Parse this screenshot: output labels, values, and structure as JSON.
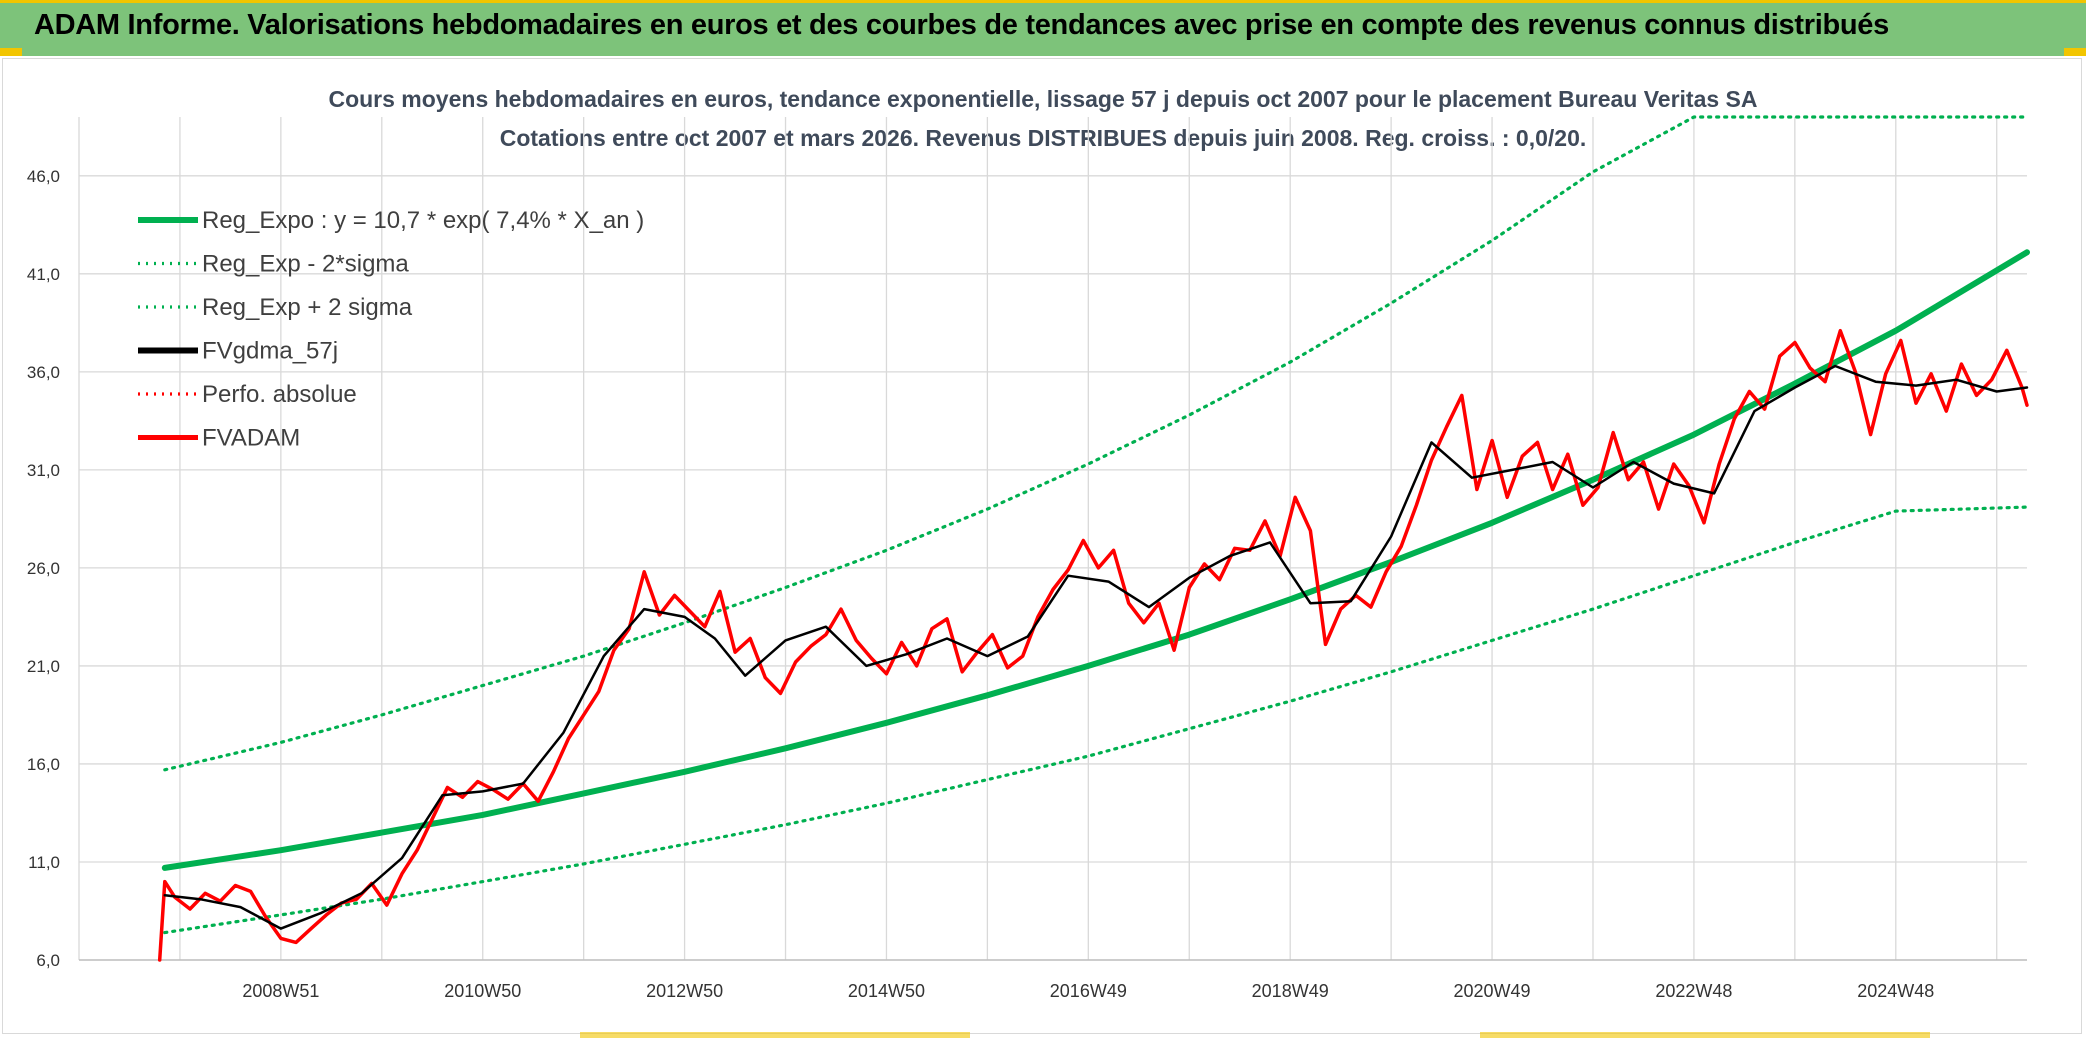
{
  "banner": {
    "title": "ADAM Informe. Valorisations hebdomadaires en euros et des courbes de tendances avec prise en compte des revenus connus distribués"
  },
  "colors": {
    "banner_bg": "#7dc37a",
    "accent": "#f2c500",
    "trend": "#00b050",
    "smooth": "#000000",
    "price": "#ff0000"
  },
  "chart_data": {
    "type": "line",
    "title": "Cours moyens hebdomadaires en euros, tendance exponentielle, lissage 57 j depuis oct 2007 pour le placement Bureau Veritas SA",
    "subtitle": "Cotations entre oct 2007 et mars 2026. Revenus DISTRIBUES depuis juin 2008. Reg. croiss. : 0,0/20.",
    "ylim": [
      6.0,
      49.0
    ],
    "y_ticks": [
      "6,0",
      "11,0",
      "16,0",
      "21,0",
      "26,0",
      "31,0",
      "36,0",
      "41,0",
      "46,0"
    ],
    "y_tick_values": [
      6,
      11,
      16,
      21,
      26,
      31,
      36,
      41,
      46
    ],
    "xlim": [
      2007.0,
      2026.3
    ],
    "x_ticks": [
      "2008W51",
      "2010W50",
      "2012W50",
      "2014W50",
      "2016W49",
      "2018W49",
      "2020W49",
      "2022W48",
      "2024W48"
    ],
    "x_tick_values": [
      2009.0,
      2011.0,
      2013.0,
      2015.0,
      2017.0,
      2019.0,
      2021.0,
      2023.0,
      2025.0
    ],
    "grid": true,
    "legend_position": "top-left",
    "series": [
      {
        "name": "Reg_Expo : y = 10,7 * exp( 7,4% *  X_an )",
        "style": "solid-thick",
        "color": "#00b050",
        "x": [
          2007.85,
          2009.0,
          2010.0,
          2011.0,
          2012.0,
          2013.0,
          2014.0,
          2015.0,
          2016.0,
          2017.0,
          2018.0,
          2019.0,
          2020.0,
          2021.0,
          2022.0,
          2023.0,
          2024.0,
          2025.0,
          2026.3
        ],
        "values": [
          10.7,
          11.6,
          12.5,
          13.4,
          14.5,
          15.6,
          16.8,
          18.1,
          19.5,
          21.0,
          22.6,
          24.4,
          26.3,
          28.3,
          30.5,
          32.8,
          35.4,
          38.1,
          42.1
        ]
      },
      {
        "name": "Reg_Exp - 2*sigma",
        "style": "dotted",
        "color": "#00b050",
        "x": [
          2007.85,
          2009.0,
          2010.0,
          2011.0,
          2012.0,
          2013.0,
          2014.0,
          2015.0,
          2016.0,
          2017.0,
          2018.0,
          2019.0,
          2020.0,
          2021.0,
          2022.0,
          2023.0,
          2024.0,
          2025.0,
          2026.3
        ],
        "values": [
          7.4,
          8.3,
          9.1,
          10.0,
          10.9,
          11.9,
          12.9,
          14.0,
          15.2,
          16.4,
          17.8,
          19.2,
          20.7,
          22.3,
          23.9,
          25.6,
          27.3,
          28.9,
          29.1
        ]
      },
      {
        "name": "Reg_Exp + 2 sigma",
        "style": "dotted",
        "color": "#00b050",
        "x": [
          2007.85,
          2009.0,
          2010.0,
          2011.0,
          2012.0,
          2013.0,
          2014.0,
          2015.0,
          2016.0,
          2017.0,
          2018.0,
          2019.0,
          2020.0,
          2021.0,
          2022.0,
          2023.0,
          2024.0,
          2025.0,
          2026.3
        ],
        "values": [
          15.7,
          17.1,
          18.5,
          20.0,
          21.5,
          23.2,
          25.0,
          26.9,
          29.0,
          31.3,
          33.8,
          36.5,
          39.5,
          42.7,
          46.2,
          49.0,
          49.0,
          49.0,
          49.0
        ]
      },
      {
        "name": "FVgdma_57j",
        "style": "solid",
        "color": "#000000",
        "x": [
          2007.85,
          2008.2,
          2008.6,
          2009.0,
          2009.4,
          2009.8,
          2010.2,
          2010.6,
          2011.0,
          2011.4,
          2011.8,
          2012.2,
          2012.6,
          2013.0,
          2013.3,
          2013.6,
          2014.0,
          2014.4,
          2014.8,
          2015.2,
          2015.6,
          2016.0,
          2016.4,
          2016.8,
          2017.2,
          2017.6,
          2018.0,
          2018.4,
          2018.8,
          2019.2,
          2019.6,
          2020.0,
          2020.4,
          2020.8,
          2021.2,
          2021.6,
          2022.0,
          2022.4,
          2022.8,
          2023.2,
          2023.6,
          2024.0,
          2024.4,
          2024.8,
          2025.2,
          2025.6,
          2026.0,
          2026.3
        ],
        "values": [
          9.3,
          9.1,
          8.7,
          7.6,
          8.4,
          9.4,
          11.2,
          14.4,
          14.6,
          15.0,
          17.6,
          21.5,
          23.9,
          23.5,
          22.4,
          20.5,
          22.3,
          23.0,
          21.0,
          21.6,
          22.4,
          21.5,
          22.5,
          25.6,
          25.3,
          24.0,
          25.5,
          26.6,
          27.3,
          24.2,
          24.3,
          27.6,
          32.4,
          30.6,
          31.0,
          31.4,
          30.1,
          31.4,
          30.3,
          29.8,
          34.0,
          35.2,
          36.3,
          35.5,
          35.3,
          35.6,
          35.0,
          35.2
        ]
      },
      {
        "name": "Perfo. absolue",
        "style": "dotted",
        "color": "#ff0000",
        "x": [],
        "values": []
      },
      {
        "name": "FVADAM",
        "style": "solid-thick",
        "color": "#ff0000",
        "x": [
          2007.8,
          2007.85,
          2007.95,
          2008.1,
          2008.25,
          2008.4,
          2008.55,
          2008.7,
          2008.85,
          2009.0,
          2009.15,
          2009.3,
          2009.45,
          2009.6,
          2009.75,
          2009.9,
          2010.05,
          2010.2,
          2010.35,
          2010.5,
          2010.65,
          2010.8,
          2010.95,
          2011.1,
          2011.25,
          2011.4,
          2011.55,
          2011.7,
          2011.85,
          2012.0,
          2012.15,
          2012.3,
          2012.45,
          2012.6,
          2012.75,
          2012.9,
          2013.05,
          2013.2,
          2013.35,
          2013.5,
          2013.65,
          2013.8,
          2013.95,
          2014.1,
          2014.25,
          2014.4,
          2014.55,
          2014.7,
          2014.85,
          2015.0,
          2015.15,
          2015.3,
          2015.45,
          2015.6,
          2015.75,
          2015.9,
          2016.05,
          2016.2,
          2016.35,
          2016.5,
          2016.65,
          2016.8,
          2016.95,
          2017.1,
          2017.25,
          2017.4,
          2017.55,
          2017.7,
          2017.85,
          2018.0,
          2018.15,
          2018.3,
          2018.45,
          2018.6,
          2018.75,
          2018.9,
          2019.05,
          2019.2,
          2019.35,
          2019.5,
          2019.65,
          2019.8,
          2019.95,
          2020.1,
          2020.25,
          2020.4,
          2020.55,
          2020.7,
          2020.85,
          2021.0,
          2021.15,
          2021.3,
          2021.45,
          2021.6,
          2021.75,
          2021.9,
          2022.05,
          2022.2,
          2022.35,
          2022.5,
          2022.65,
          2022.8,
          2022.95,
          2023.1,
          2023.25,
          2023.4,
          2023.55,
          2023.7,
          2023.85,
          2024.0,
          2024.15,
          2024.3,
          2024.45,
          2024.6,
          2024.75,
          2024.9,
          2025.05,
          2025.2,
          2025.35,
          2025.5,
          2025.65,
          2025.8,
          2025.95,
          2026.1,
          2026.25,
          2026.3
        ],
        "values": [
          6.0,
          10.0,
          9.2,
          8.6,
          9.4,
          9.0,
          9.8,
          9.5,
          8.2,
          7.1,
          6.9,
          7.6,
          8.3,
          8.9,
          9.1,
          9.9,
          8.8,
          10.4,
          11.6,
          13.2,
          14.8,
          14.3,
          15.1,
          14.7,
          14.2,
          15.0,
          14.1,
          15.6,
          17.3,
          18.5,
          19.7,
          21.8,
          22.9,
          25.8,
          23.6,
          24.6,
          23.8,
          23.0,
          24.8,
          21.7,
          22.4,
          20.4,
          19.6,
          21.2,
          22.0,
          22.6,
          23.9,
          22.3,
          21.4,
          20.6,
          22.2,
          21.0,
          22.9,
          23.4,
          20.7,
          21.7,
          22.6,
          20.9,
          21.5,
          23.5,
          24.9,
          25.9,
          27.4,
          26.0,
          26.9,
          24.2,
          23.2,
          24.2,
          21.8,
          25.0,
          26.2,
          25.4,
          27.0,
          26.9,
          28.4,
          26.6,
          29.6,
          27.9,
          22.1,
          23.9,
          24.6,
          24.0,
          25.8,
          27.1,
          29.2,
          31.5,
          33.2,
          34.8,
          30.0,
          32.5,
          29.6,
          31.7,
          32.4,
          30.0,
          31.8,
          29.2,
          30.1,
          32.9,
          30.5,
          31.4,
          29.0,
          31.3,
          30.2,
          28.3,
          31.3,
          33.6,
          35.0,
          34.1,
          36.8,
          37.5,
          36.2,
          35.5,
          38.1,
          36.0,
          32.8,
          35.9,
          37.6,
          34.4,
          35.9,
          34.0,
          36.4,
          34.8,
          35.6,
          37.1,
          35.2,
          34.3
        ]
      }
    ]
  }
}
